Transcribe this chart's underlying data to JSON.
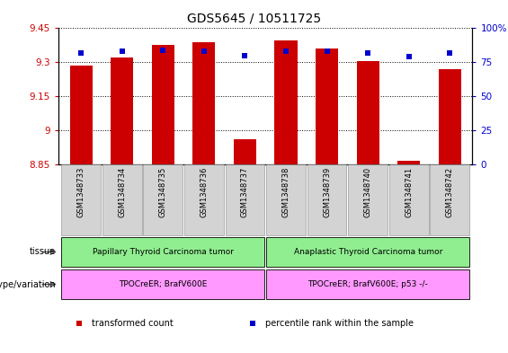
{
  "title": "GDS5645 / 10511725",
  "samples": [
    "GSM1348733",
    "GSM1348734",
    "GSM1348735",
    "GSM1348736",
    "GSM1348737",
    "GSM1348738",
    "GSM1348739",
    "GSM1348740",
    "GSM1348741",
    "GSM1348742"
  ],
  "transformed_count": [
    9.285,
    9.32,
    9.375,
    9.39,
    8.96,
    9.395,
    9.36,
    9.305,
    8.865,
    9.27
  ],
  "percentile_rank": [
    82,
    83,
    84,
    83,
    80,
    83,
    83,
    82,
    79,
    82
  ],
  "ylim_left": [
    8.85,
    9.45
  ],
  "ylim_right": [
    0,
    100
  ],
  "yticks_left": [
    8.85,
    9.0,
    9.15,
    9.3,
    9.45
  ],
  "yticks_right": [
    0,
    25,
    50,
    75,
    100
  ],
  "ytick_labels_left": [
    "8.85",
    "9",
    "9.15",
    "9.3",
    "9.45"
  ],
  "ytick_labels_right": [
    "0",
    "25",
    "50",
    "75",
    "100%"
  ],
  "bar_color": "#cc0000",
  "dot_color": "#0000cc",
  "tick_color_left": "#cc0000",
  "tick_color_right": "#0000cc",
  "tissue_color": "#90ee90",
  "geno_color": "#ff99ff",
  "xlabel_bg": "#d3d3d3",
  "tissue_groups": [
    {
      "label": "Papillary Thyroid Carcinoma tumor",
      "start": 0,
      "end": 4
    },
    {
      "label": "Anaplastic Thyroid Carcinoma tumor",
      "start": 5,
      "end": 9
    }
  ],
  "genotype_groups": [
    {
      "label": "TPOCreER; BrafV600E",
      "start": 0,
      "end": 4
    },
    {
      "label": "TPOCreER; BrafV600E; p53 -/-",
      "start": 5,
      "end": 9
    }
  ],
  "tissue_label": "tissue",
  "genotype_label": "genotype/variation",
  "legend_items": [
    {
      "color": "#cc0000",
      "label": "transformed count"
    },
    {
      "color": "#0000cc",
      "label": "percentile rank within the sample"
    }
  ],
  "title_fontsize": 10,
  "tick_fontsize": 7.5,
  "annot_fontsize": 7,
  "sample_fontsize": 6,
  "bar_width": 0.55,
  "xlim": [
    -0.55,
    9.55
  ]
}
